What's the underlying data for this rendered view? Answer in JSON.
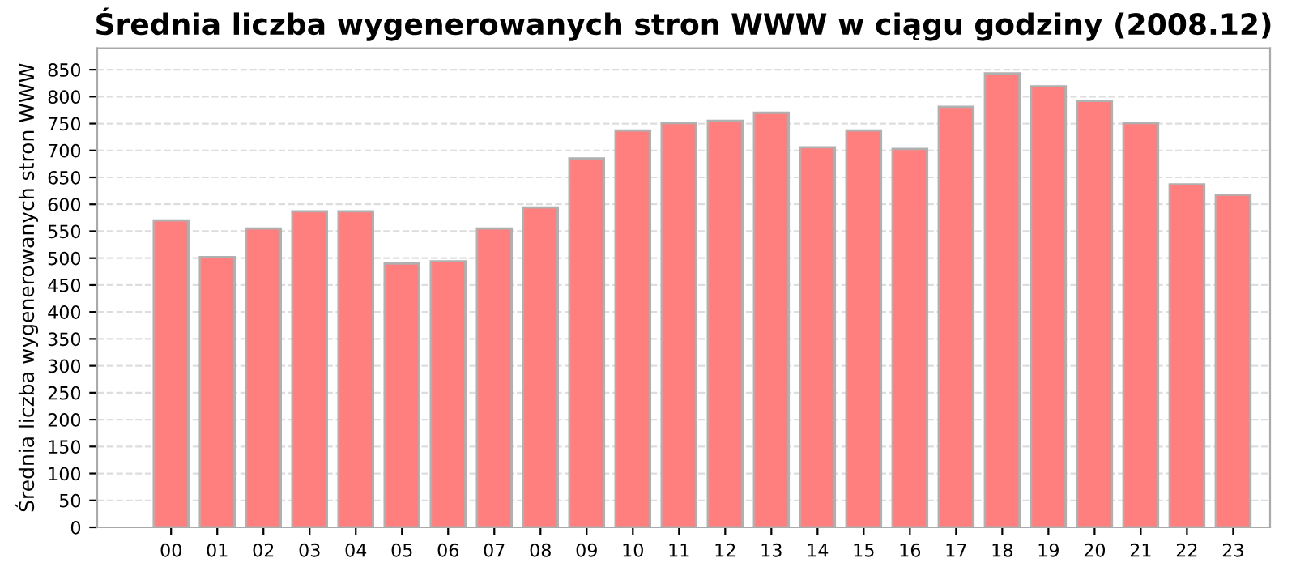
{
  "chart_data": {
    "type": "bar",
    "title": "Średnia liczba wygenerowanych stron WWW w ciągu godziny (2008.12)",
    "ylabel": "Średnia liczba wygenerowanych stron WWW",
    "categories": [
      "00",
      "01",
      "02",
      "03",
      "04",
      "05",
      "06",
      "07",
      "08",
      "09",
      "10",
      "11",
      "12",
      "13",
      "14",
      "15",
      "16",
      "17",
      "18",
      "19",
      "20",
      "21",
      "22",
      "23"
    ],
    "values": [
      570,
      502,
      555,
      587,
      587,
      490,
      494,
      555,
      594,
      685,
      737,
      751,
      755,
      770,
      706,
      737,
      703,
      781,
      843,
      819,
      792,
      751,
      637,
      618
    ],
    "color": "#ff7f7f",
    "ylim": [
      0,
      890
    ],
    "yticks": [
      0,
      50,
      100,
      150,
      200,
      250,
      300,
      350,
      400,
      450,
      500,
      550,
      600,
      650,
      700,
      750,
      800,
      850
    ],
    "grid": "y"
  }
}
